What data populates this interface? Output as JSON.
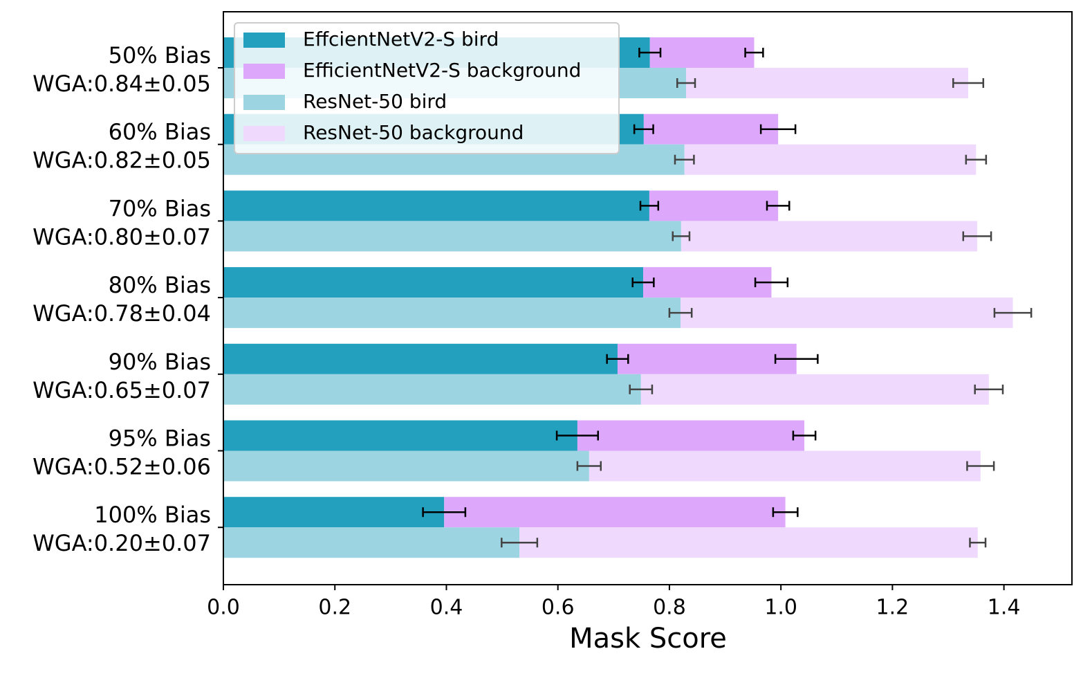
{
  "chart_data": {
    "type": "barh_stacked",
    "xlabel": "Mask Score",
    "categories": [
      [
        "50% Bias",
        "WGA:0.84±0.05"
      ],
      [
        "60% Bias",
        "WGA:0.82±0.05"
      ],
      [
        "70% Bias",
        "WGA:0.80±0.07"
      ],
      [
        "80% Bias",
        "WGA:0.78±0.04"
      ],
      [
        "90% Bias",
        "WGA:0.65±0.07"
      ],
      [
        "95% Bias",
        "WGA:0.52±0.06"
      ],
      [
        "100% Bias",
        "WGA:0.20±0.07"
      ]
    ],
    "series": [
      {
        "name": "EffcientNetV2-S bird",
        "color": "#22a0be",
        "group": 0,
        "error_color": "#000000",
        "values": [
          0.765,
          0.754,
          0.764,
          0.753,
          0.707,
          0.635,
          0.396
        ],
        "errors": [
          0.019,
          0.017,
          0.016,
          0.019,
          0.019,
          0.037,
          0.038
        ]
      },
      {
        "name": "EfficientNetV2-S background",
        "color": "#dda8fb",
        "group": 0,
        "error_color": "#000000",
        "values": [
          0.187,
          0.241,
          0.231,
          0.23,
          0.321,
          0.407,
          0.612
        ],
        "errors": [
          0.016,
          0.031,
          0.02,
          0.029,
          0.038,
          0.02,
          0.022
        ]
      },
      {
        "name": "ResNet-50 bird",
        "color": "#9dd4e1",
        "group": 1,
        "error_color": "#444444",
        "values": [
          0.83,
          0.827,
          0.821,
          0.82,
          0.749,
          0.656,
          0.531
        ],
        "errors": [
          0.016,
          0.017,
          0.015,
          0.02,
          0.02,
          0.021,
          0.032
        ]
      },
      {
        "name": "ResNet-50 background",
        "color": "#efd9fd",
        "group": 1,
        "error_color": "#444444",
        "values": [
          0.506,
          0.523,
          0.531,
          0.596,
          0.624,
          0.702,
          0.822
        ],
        "errors": [
          0.027,
          0.018,
          0.025,
          0.033,
          0.025,
          0.024,
          0.014
        ]
      }
    ],
    "xlim": [
      0,
      1.522
    ],
    "xticks": [
      {
        "value": 0,
        "label": "0.0"
      },
      0.2,
      0.4,
      0.6,
      0.8,
      {
        "value": 1,
        "label": "1.0"
      },
      1.2,
      1.4
    ],
    "legend": "upper left"
  }
}
